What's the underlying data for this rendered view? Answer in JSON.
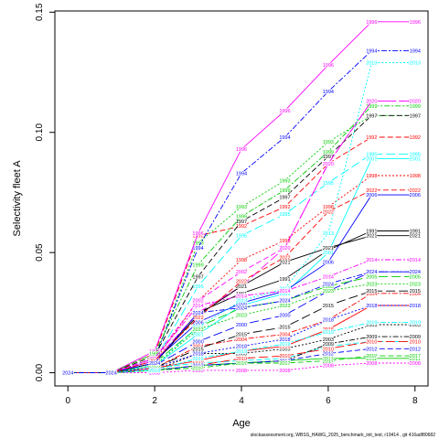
{
  "chart_data": {
    "type": "line",
    "xlabel": "Age",
    "ylabel": "Selectivity fleet A",
    "footer": "stockassessment.org, WBSS_HAWG_2025_benchmark_init_test, r19414 , git 416adf80682",
    "xlim": [
      0,
      8
    ],
    "ylim": [
      0,
      0.15
    ],
    "x_ticks": [
      "0",
      "2",
      "4",
      "6",
      "8"
    ],
    "y_ticks": [
      "0.00",
      "0.05",
      "0.10",
      "0.15"
    ],
    "x": [
      0,
      1,
      2,
      3,
      4,
      5,
      6,
      7,
      8
    ],
    "series": [
      {
        "name": "1991",
        "color": "#000000",
        "dash": "solid",
        "values": [
          0,
          0,
          0.004,
          0.025,
          0.033,
          0.039,
          0.051,
          0.059,
          0.059
        ]
      },
      {
        "name": "1992",
        "color": "#ff0000",
        "dash": "6,3",
        "values": [
          0,
          0,
          0.008,
          0.057,
          0.061,
          0.069,
          0.087,
          0.098,
          0.098
        ]
      },
      {
        "name": "1993",
        "color": "#00cd00",
        "dash": "2,2",
        "values": [
          0,
          0,
          0.006,
          0.054,
          0.069,
          0.08,
          0.096,
          0.107,
          0.107
        ]
      },
      {
        "name": "1994",
        "color": "#0000ff",
        "dash": "6,2,2,2",
        "values": [
          0,
          0,
          0.006,
          0.052,
          0.083,
          0.098,
          0.117,
          0.134,
          0.134
        ]
      },
      {
        "name": "1995",
        "color": "#00ffff",
        "dash": "10,4",
        "values": [
          0,
          0,
          0.005,
          0.036,
          0.057,
          0.066,
          0.079,
          0.091,
          0.091
        ]
      },
      {
        "name": "1996",
        "color": "#ff00ff",
        "dash": "solid",
        "values": [
          0,
          0,
          0.009,
          0.058,
          0.093,
          0.109,
          0.128,
          0.146,
          0.146
        ]
      },
      {
        "name": "1997",
        "color": "#000000",
        "dash": "6,3",
        "values": [
          0,
          0,
          0.007,
          0.04,
          0.063,
          0.073,
          0.09,
          0.107,
          0.107
        ]
      },
      {
        "name": "1998",
        "color": "#ff0000",
        "dash": "2,2",
        "values": [
          0,
          0,
          0.005,
          0.03,
          0.047,
          0.055,
          0.069,
          0.082,
          0.082
        ]
      },
      {
        "name": "1999",
        "color": "#00cd00",
        "dash": "6,2,2,2",
        "values": [
          0,
          0,
          0.008,
          0.045,
          0.065,
          0.076,
          0.092,
          0.111,
          0.111
        ]
      },
      {
        "name": "2000",
        "color": "#0000ff",
        "dash": "10,4",
        "values": [
          0,
          0,
          0.003,
          0.013,
          0.02,
          0.024,
          0.034,
          0.042,
          0.042
        ]
      },
      {
        "name": "2001",
        "color": "#00ffff",
        "dash": "solid",
        "values": [
          0,
          0,
          0.003,
          0.016,
          0.028,
          0.033,
          0.05,
          0.089,
          0.089
        ]
      },
      {
        "name": "2002",
        "color": "#ff00ff",
        "dash": "6,3",
        "values": [
          0,
          0,
          0.006,
          0.03,
          0.042,
          0.052,
          0.087,
          0.113,
          0.113
        ]
      },
      {
        "name": "2003",
        "color": "#000000",
        "dash": "2,2",
        "values": [
          0,
          0,
          0.001,
          0.008,
          0.008,
          0.01,
          0.014,
          0.02,
          0.02
        ]
      },
      {
        "name": "2004",
        "color": "#ff0000",
        "dash": "6,2,2,2",
        "values": [
          0,
          0,
          0.002,
          0.011,
          0.014,
          0.016,
          0.022,
          0.033,
          0.033
        ]
      },
      {
        "name": "2005",
        "color": "#00cd00",
        "dash": "10,4",
        "values": [
          0,
          0,
          0.004,
          0.019,
          0.027,
          0.03,
          0.036,
          0.04,
          0.04
        ]
      },
      {
        "name": "2006",
        "color": "#0000ff",
        "dash": "solid",
        "values": [
          0,
          0,
          0.005,
          0.021,
          0.029,
          0.034,
          0.046,
          0.074,
          0.074
        ]
      },
      {
        "name": "2007",
        "color": "#00ffff",
        "dash": "6,3",
        "values": [
          0,
          0,
          0.002,
          0.004,
          0.005,
          0.006,
          0.011,
          0.013,
          0.013
        ]
      },
      {
        "name": "2008",
        "color": "#ff00ff",
        "dash": "2,2",
        "values": [
          0,
          0,
          0.0,
          0.001,
          0.001,
          0.001,
          0.003,
          0.004,
          0.004
        ]
      },
      {
        "name": "2009",
        "color": "#000000",
        "dash": "6,2,2,2",
        "values": [
          0,
          0,
          0.001,
          0.003,
          0.004,
          0.005,
          0.012,
          0.015,
          0.015
        ]
      },
      {
        "name": "2010",
        "color": "#ff0000",
        "dash": "10,4",
        "values": [
          0,
          0,
          0.001,
          0.003,
          0.006,
          0.007,
          0.01,
          0.013,
          0.013
        ]
      },
      {
        "name": "2011",
        "color": "#00cd00",
        "dash": "solid",
        "values": [
          0,
          0,
          0.001,
          0.003,
          0.004,
          0.005,
          0.006,
          0.006,
          0.006
        ]
      },
      {
        "name": "2012",
        "color": "#0000ff",
        "dash": "6,3",
        "values": [
          0,
          0,
          0.001,
          0.003,
          0.004,
          0.005,
          0.008,
          0.01,
          0.01
        ]
      },
      {
        "name": "2013",
        "color": "#00ffff",
        "dash": "2,2",
        "values": [
          0,
          0,
          0.003,
          0.019,
          0.03,
          0.035,
          0.058,
          0.129,
          0.129
        ]
      },
      {
        "name": "2014",
        "color": "#ff00ff",
        "dash": "6,2,2,2",
        "values": [
          0,
          0,
          0.006,
          0.028,
          0.032,
          0.034,
          0.04,
          0.047,
          0.047
        ]
      },
      {
        "name": "2015",
        "color": "#000000",
        "dash": "10,4",
        "values": [
          0,
          0,
          0.002,
          0.01,
          0.016,
          0.019,
          0.028,
          0.034,
          0.034
        ]
      },
      {
        "name": "2016",
        "color": "#ff0000",
        "dash": "solid",
        "values": [
          0,
          0,
          0.002,
          0.005,
          0.009,
          0.011,
          0.018,
          0.028,
          0.028
        ]
      },
      {
        "name": "2017",
        "color": "#00cd00",
        "dash": "6,3",
        "values": [
          0,
          0,
          0.001,
          0.002,
          0.004,
          0.004,
          0.005,
          0.007,
          0.007
        ]
      },
      {
        "name": "2018",
        "color": "#0000ff",
        "dash": "2,2",
        "values": [
          0,
          0,
          0.002,
          0.008,
          0.011,
          0.014,
          0.022,
          0.028,
          0.028
        ]
      },
      {
        "name": "2019",
        "color": "#00ffff",
        "dash": "6,2,2,2",
        "values": [
          0,
          0,
          0.001,
          0.006,
          0.009,
          0.012,
          0.017,
          0.021,
          0.021
        ]
      },
      {
        "name": "2020",
        "color": "#ff00ff",
        "dash": "10,4",
        "values": [
          0,
          0,
          0.005,
          0.025,
          0.036,
          0.052,
          0.087,
          0.113,
          0.113
        ]
      },
      {
        "name": "2021",
        "color": "#000000",
        "dash": "solid",
        "values": [
          0,
          0,
          0.004,
          0.024,
          0.036,
          0.046,
          0.052,
          0.057,
          0.057
        ]
      },
      {
        "name": "2022",
        "color": "#ff0000",
        "dash": "6,3",
        "values": [
          0,
          0,
          0.005,
          0.023,
          0.038,
          0.048,
          0.067,
          0.076,
          0.076
        ]
      },
      {
        "name": "2023",
        "color": "#00cd00",
        "dash": "2,2",
        "values": [
          0,
          0,
          0.003,
          0.018,
          0.024,
          0.028,
          0.034,
          0.037,
          0.037
        ]
      },
      {
        "name": "2024",
        "color": "#0000ff",
        "dash": "6,2,2,2",
        "values": [
          0,
          0,
          0.004,
          0.025,
          0.027,
          0.03,
          0.037,
          0.042,
          0.042
        ]
      }
    ]
  }
}
